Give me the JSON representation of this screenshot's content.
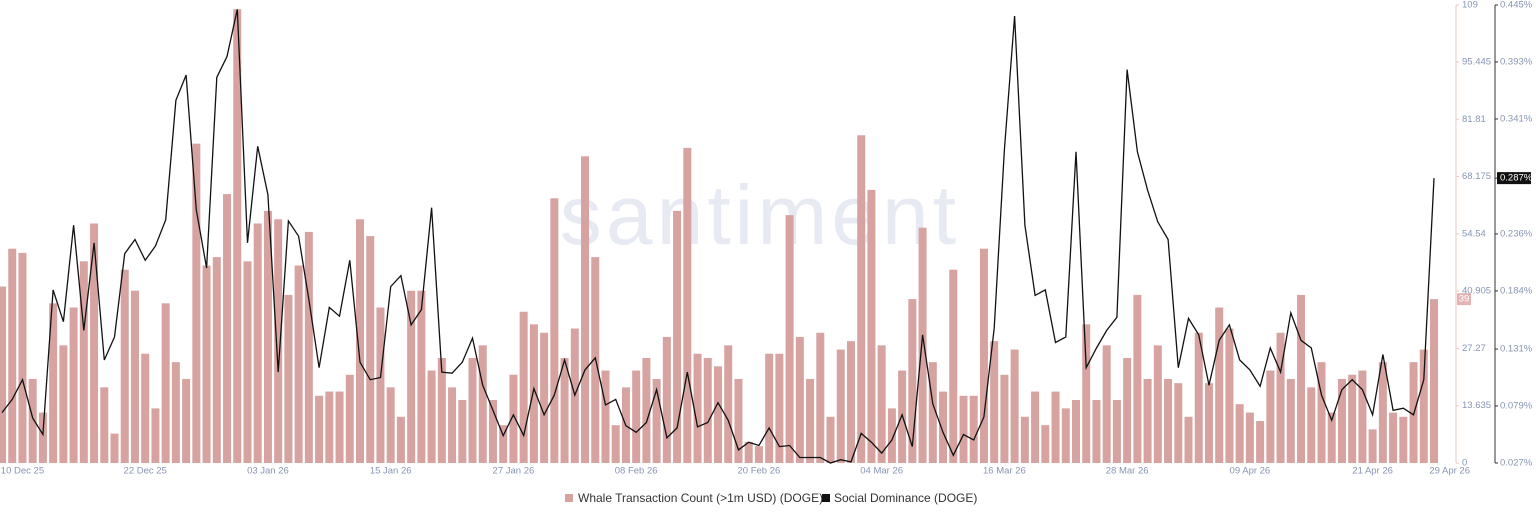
{
  "chart_data": {
    "type": "bar-line",
    "watermark": "santiment",
    "categories": [
      null,
      null,
      "10 Dec 25",
      null,
      null,
      null,
      null,
      null,
      null,
      null,
      null,
      null,
      null,
      null,
      "22 Dec 25",
      null,
      null,
      null,
      null,
      null,
      null,
      null,
      null,
      null,
      null,
      null,
      "03 Jan 26",
      null,
      null,
      null,
      null,
      null,
      null,
      null,
      null,
      null,
      null,
      null,
      "15 Jan 26",
      null,
      null,
      null,
      null,
      null,
      null,
      null,
      null,
      null,
      null,
      null,
      "27 Jan 26",
      null,
      null,
      null,
      null,
      null,
      null,
      null,
      null,
      null,
      null,
      null,
      "08 Feb 26",
      null,
      null,
      null,
      null,
      null,
      null,
      null,
      null,
      null,
      null,
      null,
      "20 Feb 26",
      null,
      null,
      null,
      null,
      null,
      null,
      null,
      null,
      null,
      null,
      null,
      "04 Mar 26",
      null,
      null,
      null,
      null,
      null,
      null,
      null,
      null,
      null,
      null,
      null,
      "16 Mar 26",
      null,
      null,
      null,
      null,
      null,
      null,
      null,
      null,
      null,
      null,
      null,
      "28 Mar 26",
      null,
      null,
      null,
      null,
      null,
      null,
      null,
      null,
      null,
      null,
      null,
      "09 Apr 26",
      null,
      null,
      null,
      null,
      null,
      null,
      null,
      null,
      null,
      null,
      null,
      "21 Apr 26",
      null,
      null,
      null,
      null,
      null,
      "29 Apr 26"
    ],
    "series": [
      {
        "name": "Whale Transaction Count (>1m USD) (DOGE)",
        "color": "#d6a3a1",
        "axis": "y",
        "values": [
          42,
          51,
          50,
          20,
          12,
          38,
          28,
          37,
          48,
          57,
          18,
          7,
          46,
          41,
          26,
          13,
          38,
          24,
          20,
          76,
          47,
          49,
          64,
          108,
          48,
          57,
          60,
          58,
          40,
          47,
          55,
          16,
          17,
          17,
          21,
          58,
          54,
          37,
          18,
          11,
          41,
          41,
          22,
          25,
          18,
          15,
          25,
          28,
          15,
          9,
          21,
          36,
          33,
          31,
          63,
          25,
          32,
          73,
          49,
          22,
          9,
          18,
          22,
          25,
          20,
          30,
          60,
          75,
          26,
          25,
          23,
          28,
          20,
          5,
          4,
          26,
          26,
          59,
          30,
          20,
          31,
          11,
          27,
          29,
          78,
          65,
          28,
          13,
          22,
          39,
          56,
          24,
          17,
          46,
          16,
          16,
          51,
          29,
          21,
          27,
          11,
          17,
          9,
          17,
          13,
          15,
          33,
          15,
          28,
          15,
          25,
          40,
          20,
          28,
          20,
          19,
          11,
          31,
          19,
          37,
          32,
          14,
          12,
          10,
          22,
          31,
          20,
          40,
          18,
          24,
          12,
          20,
          21,
          22,
          8,
          24,
          12,
          11,
          24,
          27,
          39
        ]
      },
      {
        "name": "Social Dominance (DOGE)",
        "color": "#111111",
        "axis": "y2",
        "values": [
          0.073,
          0.085,
          0.103,
          0.068,
          0.053,
          0.185,
          0.156,
          0.244,
          0.148,
          0.228,
          0.121,
          0.142,
          0.218,
          0.231,
          0.212,
          0.225,
          0.249,
          0.358,
          0.381,
          0.258,
          0.205,
          0.379,
          0.398,
          0.441,
          0.228,
          0.316,
          0.272,
          0.11,
          0.248,
          0.234,
          0.176,
          0.114,
          0.169,
          0.161,
          0.212,
          0.119,
          0.103,
          0.105,
          0.188,
          0.198,
          0.153,
          0.167,
          0.26,
          0.11,
          0.109,
          0.119,
          0.141,
          0.098,
          0.075,
          0.052,
          0.071,
          0.052,
          0.095,
          0.071,
          0.089,
          0.121,
          0.089,
          0.112,
          0.123,
          0.08,
          0.085,
          0.061,
          0.055,
          0.064,
          0.094,
          0.05,
          0.059,
          0.11,
          0.06,
          0.064,
          0.082,
          0.066,
          0.039,
          0.046,
          0.043,
          0.059,
          0.042,
          0.043,
          0.032,
          0.032,
          0.032,
          0.027,
          0.03,
          0.028,
          0.054,
          0.046,
          0.036,
          0.048,
          0.071,
          0.042,
          0.144,
          0.081,
          0.055,
          0.034,
          0.053,
          0.048,
          0.069,
          0.15,
          0.313,
          0.435,
          0.244,
          0.18,
          0.185,
          0.137,
          0.142,
          0.311,
          0.114,
          0.132,
          0.148,
          0.16,
          0.386,
          0.311,
          0.276,
          0.247,
          0.231,
          0.114,
          0.159,
          0.144,
          0.098,
          0.139,
          0.153,
          0.121,
          0.112,
          0.097,
          0.132,
          0.11,
          0.164,
          0.139,
          0.132,
          0.089,
          0.066,
          0.094,
          0.103,
          0.094,
          0.071,
          0.126,
          0.075,
          0.077,
          0.071,
          0.103,
          0.287
        ]
      }
    ],
    "ylim": [
      0,
      109
    ],
    "yticks": [
      0,
      13.635,
      27.27,
      40.905,
      54.54,
      68.175,
      81.81,
      95.445,
      109
    ],
    "y2lim": [
      0.027,
      0.445
    ],
    "y2ticks": [
      {
        "value": 0.027,
        "label": "0.027%"
      },
      {
        "value": 0.079,
        "label": "0.079%"
      },
      {
        "value": 0.131,
        "label": "0.131%"
      },
      {
        "value": 0.184,
        "label": "0.184%"
      },
      {
        "value": 0.236,
        "label": "0.236%"
      },
      {
        "value": 0.287,
        "label": "0.287%"
      },
      {
        "value": 0.341,
        "label": "0.341%"
      },
      {
        "value": 0.393,
        "label": "0.393%"
      },
      {
        "value": 0.445,
        "label": "0.445%"
      }
    ]
  }
}
